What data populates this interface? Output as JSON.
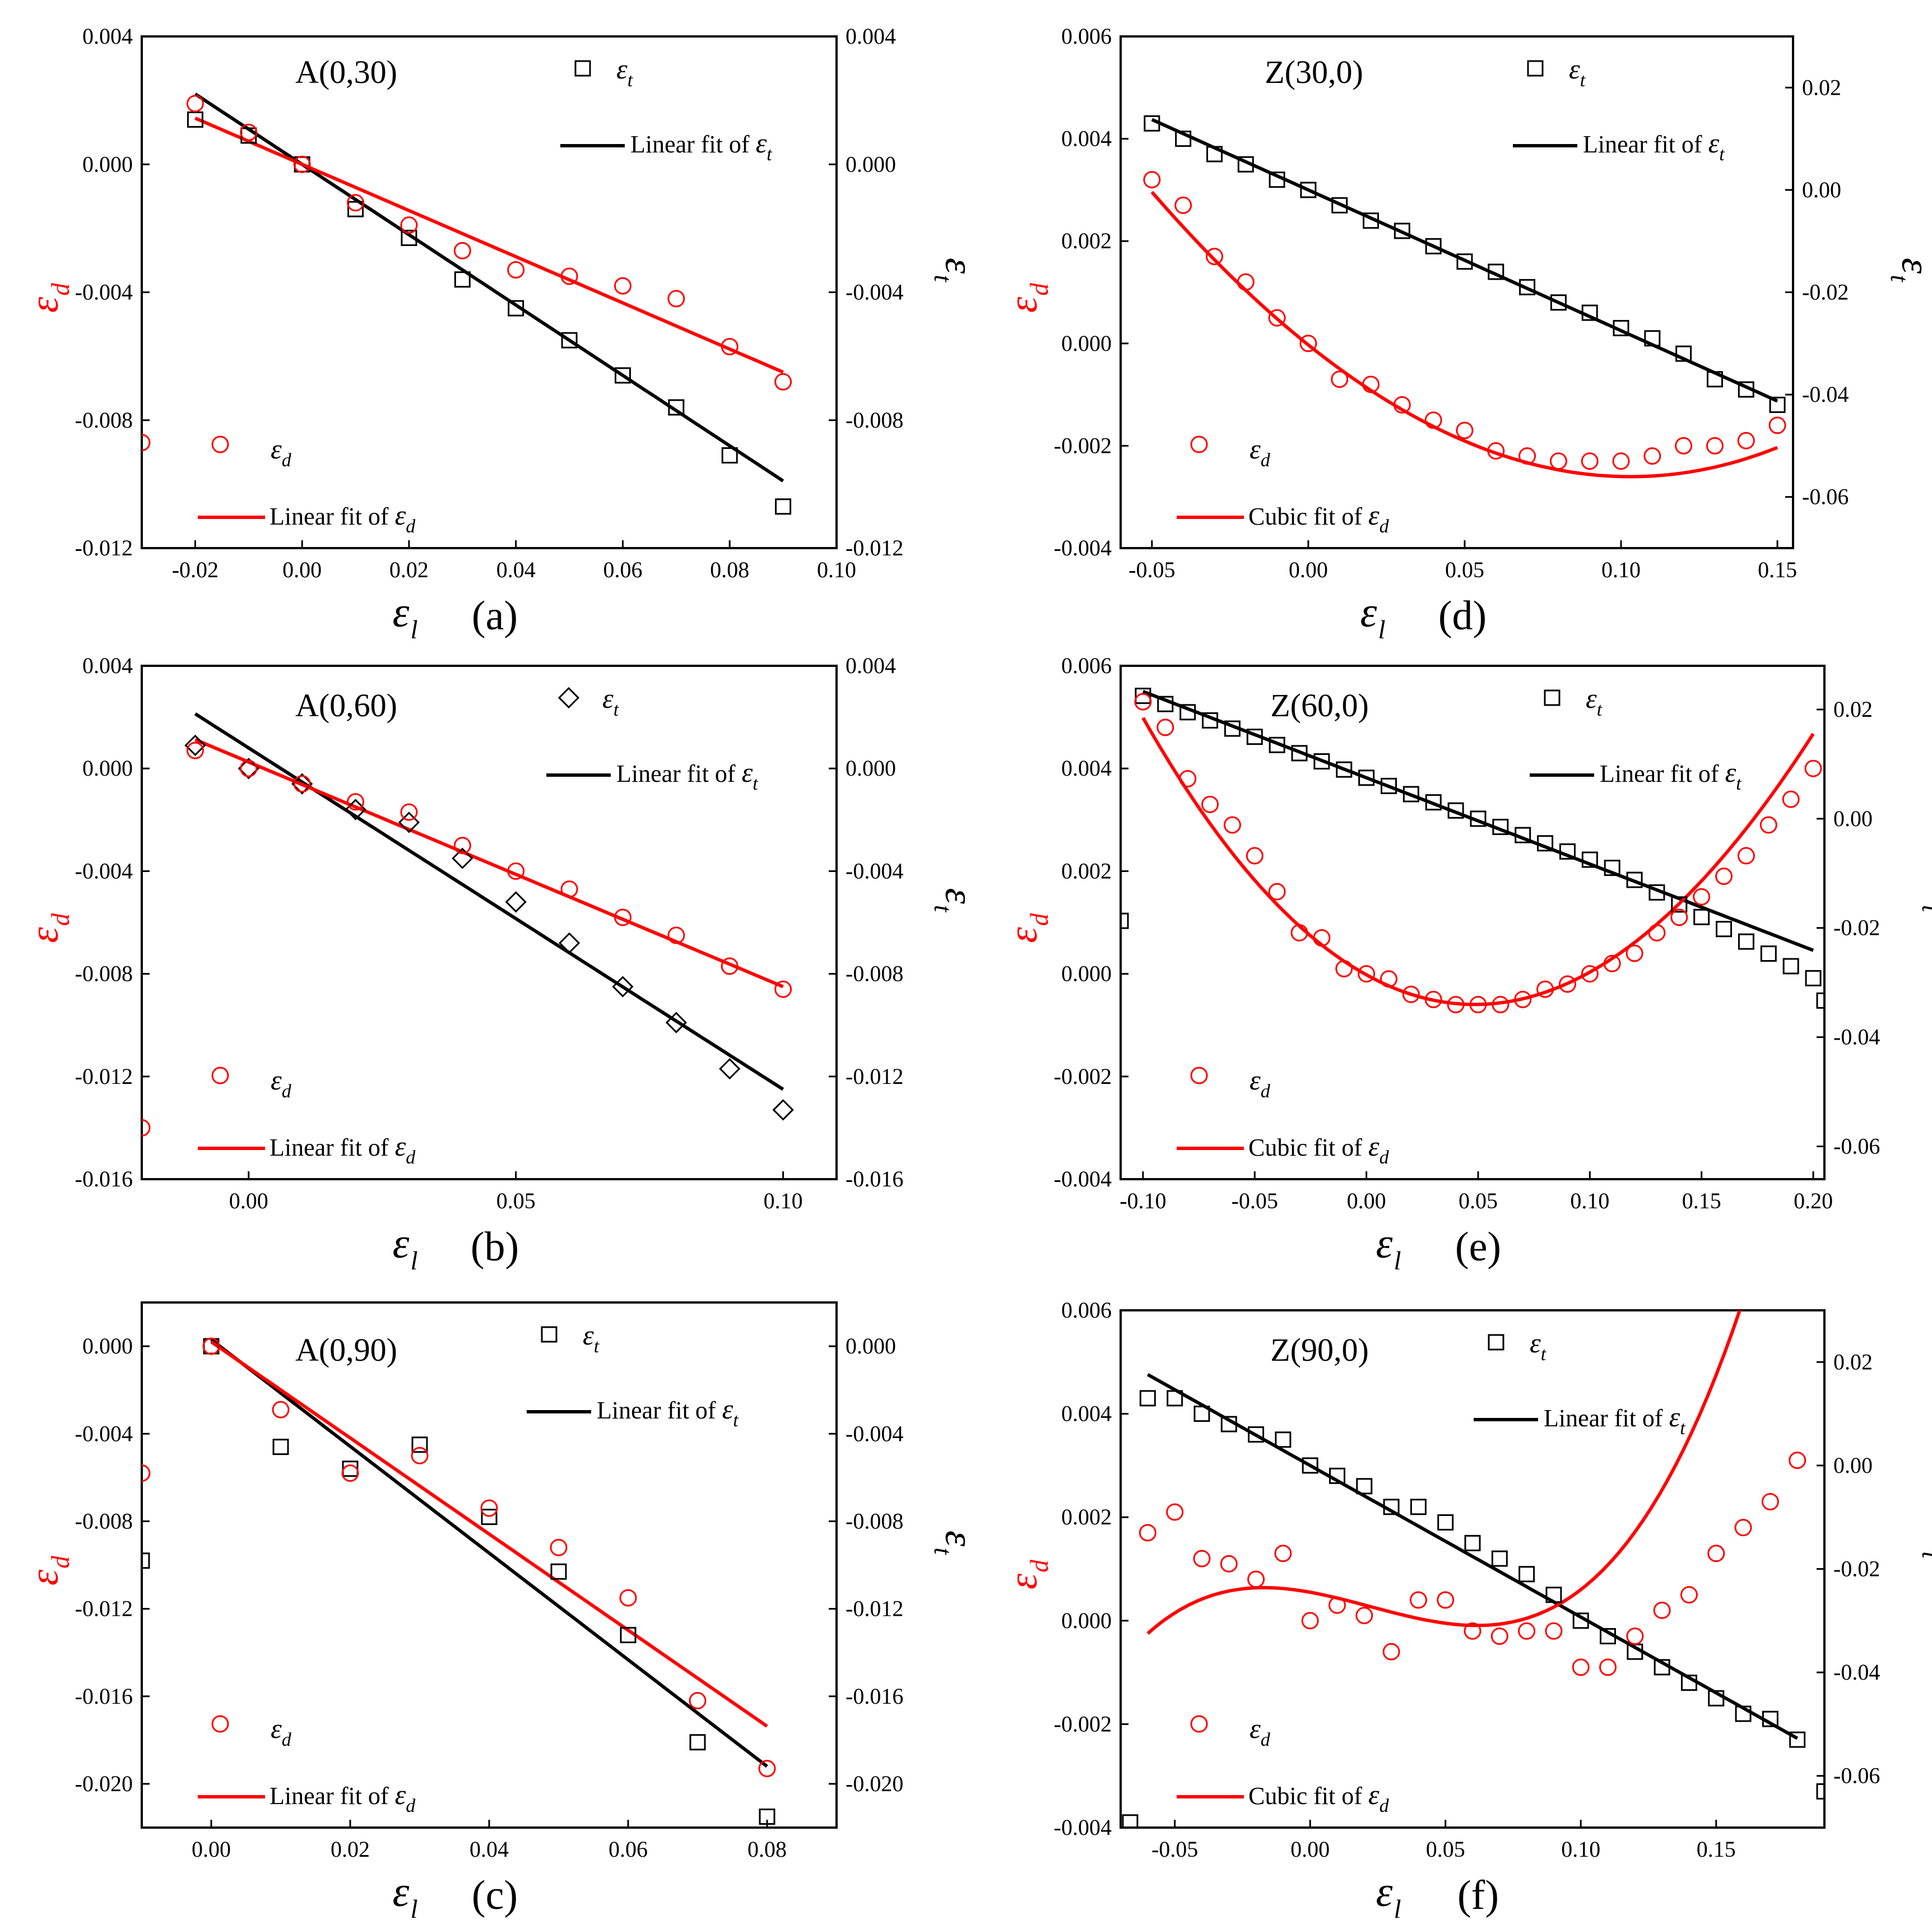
{
  "figure": {
    "symbol": "ε",
    "subscripts": {
      "l": "l",
      "d": "d",
      "t": "t"
    },
    "colors": {
      "d": "#ff0000",
      "t": "#000000",
      "axis": "#000000"
    }
  },
  "chart_data": [
    {
      "type": "scatter",
      "title": "A(0,30)",
      "caption": "(a)",
      "xlabel": "ε_l",
      "ylabel_left": "ε_d",
      "ylabel_right": "ε_t",
      "xlim": [
        -0.03,
        0.1
      ],
      "ylim_left": [
        -0.012,
        0.004
      ],
      "ylim_right": [
        -0.012,
        0.004
      ],
      "xticks": [
        -0.02,
        0.0,
        0.02,
        0.04,
        0.06,
        0.08,
        0.1
      ],
      "xtick_labels": [
        "-0.02",
        "0.00",
        "0.02",
        "0.04",
        "0.06",
        "0.08",
        "0.10"
      ],
      "yticks_left": [
        -0.012,
        -0.008,
        -0.004,
        0.0,
        0.004
      ],
      "ytick_labels_left": [
        "-0.012",
        "-0.008",
        "-0.004",
        "0.000",
        "0.004"
      ],
      "yticks_right": [
        -0.012,
        -0.008,
        -0.004,
        0.0,
        0.004
      ],
      "ytick_labels_right": [
        "-0.012",
        "-0.008",
        "-0.004",
        "0.000",
        "0.004"
      ],
      "t_marker": "square",
      "legend": {
        "t_points": "ε_t",
        "t_fit": "Linear fit of ε_t",
        "d_points": "ε_d",
        "d_fit": "Linear fit of ε_d"
      },
      "series_d": {
        "x": [
          -0.03,
          -0.02,
          -0.01,
          0.0,
          0.01,
          0.02,
          0.03,
          0.04,
          0.05,
          0.06,
          0.07,
          0.08,
          0.09
        ],
        "y": [
          -0.0087,
          0.0019,
          0.001,
          0.0,
          -0.0012,
          -0.0019,
          -0.0027,
          -0.0033,
          -0.0035,
          -0.0038,
          -0.0042,
          -0.0057,
          -0.0068
        ]
      },
      "series_t": {
        "x": [
          -0.02,
          -0.01,
          0.0,
          0.01,
          0.02,
          0.03,
          0.04,
          0.05,
          0.06,
          0.07,
          0.08,
          0.09
        ],
        "y": [
          0.0014,
          0.0009,
          0.0,
          -0.0014,
          -0.0023,
          -0.0036,
          -0.0045,
          -0.0055,
          -0.0066,
          -0.0076,
          -0.0091,
          -0.0107
        ]
      },
      "fit_d": {
        "kind": "linear",
        "coef": [
          0.0,
          -0.0722
        ],
        "range": [
          -0.02,
          0.09
        ]
      },
      "fit_t": {
        "kind": "linear",
        "coef": [
          0.0,
          -0.11
        ],
        "range": [
          -0.02,
          0.09
        ]
      }
    },
    {
      "type": "scatter",
      "title": "A(0,60)",
      "caption": "(b)",
      "xlabel": "ε_l",
      "ylabel_left": "ε_d",
      "ylabel_right": "ε_t",
      "xlim": [
        -0.02,
        0.11
      ],
      "ylim_left": [
        -0.016,
        0.004
      ],
      "ylim_right": [
        -0.016,
        0.004
      ],
      "xticks": [
        0.0,
        0.05,
        0.1
      ],
      "xtick_labels": [
        "0.00",
        "0.05",
        "0.10"
      ],
      "yticks_left": [
        -0.016,
        -0.012,
        -0.008,
        -0.004,
        0.0,
        0.004
      ],
      "ytick_labels_left": [
        "-0.016",
        "-0.012",
        "-0.008",
        "-0.004",
        "0.000",
        "0.004"
      ],
      "yticks_right": [
        -0.016,
        -0.012,
        -0.008,
        -0.004,
        0.0,
        0.004
      ],
      "ytick_labels_right": [
        "-0.016",
        "-0.012",
        "-0.008",
        "-0.004",
        "0.000",
        "0.004"
      ],
      "t_marker": "diamond",
      "legend": {
        "t_points": "ε_t",
        "t_fit": "Linear fit of ε_t",
        "d_points": "ε_d",
        "d_fit": "Linear fit of ε_d"
      },
      "series_d": {
        "x": [
          -0.02,
          -0.01,
          0.0,
          0.01,
          0.02,
          0.03,
          0.04,
          0.05,
          0.06,
          0.07,
          0.08,
          0.09,
          0.1
        ],
        "y": [
          -0.014,
          0.0007,
          0.0,
          -0.0006,
          -0.0013,
          -0.0017,
          -0.003,
          -0.004,
          -0.0047,
          -0.0058,
          -0.0065,
          -0.0077,
          -0.0086
        ]
      },
      "series_t": {
        "x": [
          -0.01,
          0.0,
          0.01,
          0.02,
          0.03,
          0.04,
          0.05,
          0.06,
          0.07,
          0.08,
          0.09,
          0.1
        ],
        "y": [
          0.0009,
          0.0,
          -0.0006,
          -0.0016,
          -0.0021,
          -0.0035,
          -0.0052,
          -0.0068,
          -0.0085,
          -0.0099,
          -0.0117,
          -0.0133
        ]
      },
      "fit_d": {
        "kind": "linear",
        "coef": [
          0.00025,
          -0.0875
        ],
        "range": [
          -0.01,
          0.1
        ]
      },
      "fit_t": {
        "kind": "linear",
        "coef": [
          0.0008,
          -0.133
        ],
        "range": [
          -0.01,
          0.1
        ]
      }
    },
    {
      "type": "scatter",
      "title": "A(0,90)",
      "caption": "(c)",
      "xlabel": "ε_l",
      "ylabel_left": "ε_d",
      "ylabel_right": "ε_t",
      "xlim": [
        -0.01,
        0.09
      ],
      "ylim_left": [
        -0.022,
        0.002
      ],
      "ylim_right": [
        -0.022,
        0.002
      ],
      "xticks": [
        0.0,
        0.02,
        0.04,
        0.06,
        0.08
      ],
      "xtick_labels": [
        "0.00",
        "0.02",
        "0.04",
        "0.06",
        "0.08"
      ],
      "yticks_left": [
        -0.02,
        -0.016,
        -0.012,
        -0.008,
        -0.004,
        0.0
      ],
      "ytick_labels_left": [
        "-0.020",
        "-0.016",
        "-0.012",
        "-0.008",
        "-0.004",
        "0.000"
      ],
      "yticks_right": [
        -0.02,
        -0.016,
        -0.012,
        -0.008,
        -0.004,
        0.0
      ],
      "ytick_labels_right": [
        "-0.020",
        "-0.016",
        "-0.012",
        "-0.008",
        "-0.004",
        "0.000"
      ],
      "t_marker": "square",
      "legend": {
        "t_points": "ε_t",
        "t_fit": "Linear fit of ε_t",
        "d_points": "ε_d",
        "d_fit": "Linear fit of ε_d"
      },
      "series_d": {
        "x": [
          -0.01,
          0.0,
          0.01,
          0.02,
          0.03,
          0.04,
          0.05,
          0.06,
          0.07,
          0.08
        ],
        "y": [
          -0.0058,
          0.0,
          -0.0029,
          -0.0058,
          -0.005,
          -0.0074,
          -0.0092,
          -0.0115,
          -0.0162,
          -0.0193
        ]
      },
      "series_t": {
        "x": [
          -0.01,
          0.0,
          0.01,
          0.02,
          0.03,
          0.04,
          0.05,
          0.06,
          0.07,
          0.08
        ],
        "y": [
          -0.0098,
          0.0,
          -0.0046,
          -0.0056,
          -0.0045,
          -0.0078,
          -0.0103,
          -0.0132,
          -0.0181,
          -0.0215
        ]
      },
      "fit_d": {
        "kind": "linear",
        "coef": [
          0.0002,
          -0.2196
        ],
        "range": [
          0.0,
          0.08
        ]
      },
      "fit_t": {
        "kind": "linear",
        "coef": [
          0.0003,
          -0.2438
        ],
        "range": [
          0.0,
          0.08
        ]
      }
    },
    {
      "type": "scatter",
      "title": "Z(30,0)",
      "caption": "(d)",
      "xlabel": "ε_l",
      "ylabel_left": "ε_d",
      "ylabel_right": "ε_t",
      "xlim": [
        -0.06,
        0.155
      ],
      "ylim_left": [
        -0.004,
        0.006
      ],
      "ylim_right": [
        -0.07,
        0.03
      ],
      "xticks": [
        -0.05,
        0.0,
        0.05,
        0.1,
        0.15
      ],
      "xtick_labels": [
        "-0.05",
        "0.00",
        "0.05",
        "0.10",
        "0.15"
      ],
      "yticks_left": [
        -0.004,
        -0.002,
        0.0,
        0.002,
        0.004,
        0.006
      ],
      "ytick_labels_left": [
        "-0.004",
        "-0.002",
        "0.000",
        "0.002",
        "0.004",
        "0.006"
      ],
      "yticks_right": [
        -0.06,
        -0.04,
        -0.02,
        0.0,
        0.02
      ],
      "ytick_labels_right": [
        "-0.06",
        "-0.04",
        "-0.02",
        "0.00",
        "0.02"
      ],
      "t_marker": "square",
      "legend": {
        "t_points": "ε_t",
        "t_fit": "Linear fit of ε_t",
        "d_points": "ε_d",
        "d_fit": "Cubic fit of ε_d"
      },
      "series_d": {
        "x": [
          -0.05,
          -0.04,
          -0.03,
          -0.02,
          -0.01,
          0.0,
          0.01,
          0.02,
          0.03,
          0.04,
          0.05,
          0.06,
          0.07,
          0.08,
          0.09,
          0.1,
          0.11,
          0.12,
          0.13,
          0.14,
          0.15
        ],
        "y": [
          0.0032,
          0.0027,
          0.0017,
          0.0012,
          0.0005,
          0.0,
          -0.0007,
          -0.0008,
          -0.0012,
          -0.0015,
          -0.0017,
          -0.0021,
          -0.0022,
          -0.0023,
          -0.0023,
          -0.0023,
          -0.0022,
          -0.002,
          -0.002,
          -0.0019,
          -0.0016
        ]
      },
      "series_t": {
        "x": [
          -0.05,
          -0.04,
          -0.03,
          -0.02,
          -0.01,
          0.0,
          0.01,
          0.02,
          0.03,
          0.04,
          0.05,
          0.06,
          0.07,
          0.08,
          0.09,
          0.1,
          0.11,
          0.12,
          0.13,
          0.14,
          0.15
        ],
        "y": [
          0.013,
          0.01,
          0.007,
          0.005,
          0.002,
          0.0,
          -0.003,
          -0.006,
          -0.008,
          -0.011,
          -0.014,
          -0.016,
          -0.019,
          -0.022,
          -0.024,
          -0.027,
          -0.029,
          -0.032,
          -0.037,
          -0.039,
          -0.042
        ]
      },
      "fit_d": {
        "kind": "cubic",
        "coef": [
          -2.86e-05,
          -0.04892,
          0.22184,
          0.10096
        ],
        "range": [
          -0.05,
          0.15
        ]
      },
      "fit_t": {
        "kind": "linear",
        "coef": [
          0.0,
          -0.275
        ],
        "range": [
          -0.05,
          0.15
        ]
      }
    },
    {
      "type": "scatter",
      "title": "Z(60,0)",
      "caption": "(e)",
      "xlabel": "ε_l",
      "ylabel_left": "ε_d",
      "ylabel_right": "ε_t",
      "xlim": [
        -0.11,
        0.205
      ],
      "ylim_left": [
        -0.004,
        0.006
      ],
      "ylim_right": [
        -0.066,
        0.028
      ],
      "xticks": [
        -0.1,
        -0.05,
        0.0,
        0.05,
        0.1,
        0.15,
        0.2
      ],
      "xtick_labels": [
        "-0.10",
        "-0.05",
        "0.00",
        "0.05",
        "0.10",
        "0.15",
        "0.20"
      ],
      "yticks_left": [
        -0.004,
        -0.002,
        0.0,
        0.002,
        0.004,
        0.006
      ],
      "ytick_labels_left": [
        "-0.004",
        "-0.002",
        "0.000",
        "0.002",
        "0.004",
        "0.006"
      ],
      "yticks_right": [
        -0.06,
        -0.04,
        -0.02,
        0.0,
        0.02
      ],
      "ytick_labels_right": [
        "-0.06",
        "-0.04",
        "-0.02",
        "0.00",
        "0.02"
      ],
      "t_marker": "square",
      "legend": {
        "t_points": "ε_t",
        "t_fit": "Linear fit of ε_t",
        "d_points": "ε_d",
        "d_fit": "Cubic fit of ε_d"
      },
      "series_d": {
        "x": [
          -0.1,
          -0.09,
          -0.08,
          -0.07,
          -0.06,
          -0.05,
          -0.04,
          -0.03,
          -0.02,
          -0.01,
          0.0,
          0.01,
          0.02,
          0.03,
          0.04,
          0.05,
          0.06,
          0.07,
          0.08,
          0.09,
          0.1,
          0.11,
          0.12,
          0.13,
          0.14,
          0.15,
          0.16,
          0.17,
          0.18,
          0.19,
          0.2
        ],
        "y": [
          0.0053,
          0.0048,
          0.0038,
          0.0033,
          0.0029,
          0.0023,
          0.0016,
          0.0008,
          0.0007,
          0.0001,
          0.0,
          -0.0001,
          -0.0004,
          -0.0005,
          -0.0006,
          -0.0006,
          -0.0006,
          -0.0005,
          -0.0003,
          -0.0002,
          0.0,
          0.0002,
          0.0004,
          0.0008,
          0.0011,
          0.0015,
          0.0019,
          0.0023,
          0.0029,
          0.0034,
          0.004
        ]
      },
      "series_t": {
        "x": [
          -0.11,
          -0.1,
          -0.09,
          -0.08,
          -0.07,
          -0.06,
          -0.05,
          -0.04,
          -0.03,
          -0.02,
          -0.01,
          0.0,
          0.01,
          0.02,
          0.03,
          0.04,
          0.05,
          0.06,
          0.07,
          0.08,
          0.09,
          0.1,
          0.11,
          0.12,
          0.13,
          0.14,
          0.15,
          0.16,
          0.17,
          0.18,
          0.19,
          0.2,
          0.205
        ],
        "y": [
          -0.0187,
          0.0225,
          0.021,
          0.0195,
          0.018,
          0.0165,
          0.015,
          0.0135,
          0.012,
          0.0105,
          0.009,
          0.0075,
          0.006,
          0.0045,
          0.003,
          0.0015,
          0.0,
          -0.0015,
          -0.003,
          -0.0045,
          -0.006,
          -0.0075,
          -0.009,
          -0.0112,
          -0.0135,
          -0.0157,
          -0.018,
          -0.0202,
          -0.0225,
          -0.0247,
          -0.027,
          -0.0292,
          -0.0333
        ]
      },
      "fit_d": {
        "kind": "cubic",
        "coef": [
          -1.95e-05,
          -0.024,
          0.253,
          -0.078
        ],
        "range": [
          -0.1,
          0.2
        ]
      },
      "fit_t": {
        "kind": "linear",
        "coef": [
          0.0075,
          -0.158
        ],
        "range": [
          -0.1,
          0.2
        ]
      }
    },
    {
      "type": "scatter",
      "title": "Z(90,0)",
      "caption": "(f)",
      "xlabel": "ε_l",
      "ylabel_left": "ε_d",
      "ylabel_right": "ε_t",
      "xlim": [
        -0.07,
        0.19
      ],
      "ylim_left": [
        -0.004,
        0.006
      ],
      "ylim_right": [
        -0.07,
        0.03
      ],
      "xticks": [
        -0.05,
        0.0,
        0.05,
        0.1,
        0.15
      ],
      "xtick_labels": [
        "-0.05",
        "0.00",
        "0.05",
        "0.10",
        "0.15"
      ],
      "yticks_left": [
        -0.004,
        -0.002,
        0.0,
        0.002,
        0.004,
        0.006
      ],
      "ytick_labels_left": [
        "-0.004",
        "-0.002",
        "0.000",
        "0.002",
        "0.004",
        "0.006"
      ],
      "yticks_right": [
        -0.06,
        -0.04,
        -0.02,
        0.0,
        0.02
      ],
      "ytick_labels_right": [
        "-0.06",
        "-0.04",
        "-0.02",
        "0.00",
        "0.02"
      ],
      "t_marker": "square",
      "legend": {
        "t_points": "ε_t",
        "t_fit": "Linear fit of ε_t",
        "d_points": "ε_d",
        "d_fit": "Cubic fit of ε_d"
      },
      "series_d": {
        "x": [
          -0.06,
          -0.05,
          -0.04,
          -0.03,
          -0.02,
          -0.01,
          0.0,
          0.01,
          0.02,
          0.03,
          0.04,
          0.05,
          0.06,
          0.07,
          0.08,
          0.09,
          0.1,
          0.11,
          0.12,
          0.13,
          0.14,
          0.15,
          0.16,
          0.17,
          0.18
        ],
        "y": [
          0.0017,
          0.0021,
          0.0012,
          0.0011,
          0.0008,
          0.0013,
          0.0,
          0.0003,
          0.0001,
          -0.0006,
          0.0004,
          0.0004,
          -0.0002,
          -0.0003,
          -0.0002,
          -0.0002,
          -0.0009,
          -0.0009,
          -0.0003,
          0.0002,
          0.0005,
          0.0013,
          0.0018,
          0.0023,
          0.0031
        ]
      },
      "series_t": {
        "x": [
          -0.0665,
          -0.06,
          -0.05,
          -0.04,
          -0.03,
          -0.02,
          -0.01,
          0.0,
          0.01,
          0.02,
          0.03,
          0.04,
          0.05,
          0.06,
          0.07,
          0.08,
          0.09,
          0.1,
          0.11,
          0.12,
          0.13,
          0.14,
          0.15,
          0.16,
          0.17,
          0.18,
          0.19
        ],
        "y": [
          -0.069,
          0.013,
          0.013,
          0.01,
          0.008,
          0.006,
          0.005,
          0.0,
          -0.002,
          -0.004,
          -0.008,
          -0.008,
          -0.011,
          -0.015,
          -0.018,
          -0.021,
          -0.025,
          -0.03,
          -0.033,
          -0.036,
          -0.039,
          -0.042,
          -0.045,
          -0.048,
          -0.049,
          -0.053,
          -0.063
        ]
      },
      "fit_d": {
        "kind": "cubic",
        "coef": [
          0.00055,
          -0.0095,
          -0.2,
          3.0
        ],
        "range": [
          -0.06,
          0.18
        ]
      },
      "fit_t": {
        "kind": "linear",
        "coef": [
          0.0,
          -0.293
        ],
        "range": [
          -0.06,
          0.18
        ]
      }
    }
  ]
}
